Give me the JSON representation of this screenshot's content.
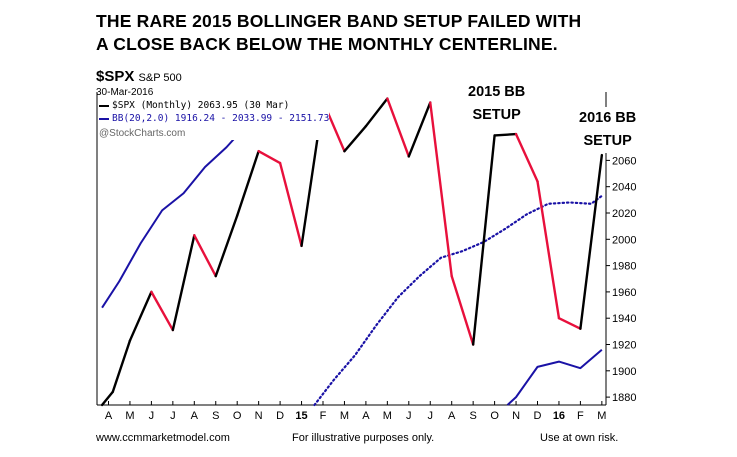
{
  "headline": {
    "line1": "THE RARE 2015 BOLLINGER BAND SETUP FAILED WITH",
    "line2": "A CLOSE BACK BELOW THE MONTHLY CENTERLINE."
  },
  "symbol": {
    "ticker": "$SPX",
    "name": "S&P 500",
    "date": "30-Mar-2016"
  },
  "legend": {
    "price": "$SPX (Monthly) 2063.95 (30 Mar)",
    "bb": "BB(20,2.0) 1916.24 - 2033.99 - 2151.73",
    "copyright": "@StockCharts.com"
  },
  "annotations": {
    "a2015": {
      "line1": "2015 BB",
      "line2": "SETUP"
    },
    "a2016": {
      "line1": "2016 BB",
      "line2": "SETUP"
    }
  },
  "footer": {
    "left": "www.ccmmarketmodel.com",
    "center": "For illustrative purposes only.",
    "right": "Use at own risk."
  },
  "colors": {
    "up": "#000000",
    "down": "#e8103c",
    "band": "#1a12a6"
  },
  "chart_data": {
    "type": "line",
    "categories": [
      "A",
      "M",
      "J",
      "J",
      "A",
      "S",
      "O",
      "N",
      "D",
      "15",
      "F",
      "M",
      "A",
      "M",
      "J",
      "J",
      "A",
      "S",
      "O",
      "N",
      "D",
      "16",
      "F",
      "M"
    ],
    "bold_categories": [
      9,
      21
    ],
    "ylim": [
      1874,
      2112
    ],
    "y_ticks": [
      1880,
      1900,
      1920,
      1940,
      1960,
      1980,
      2000,
      2020,
      2040,
      2060
    ],
    "price_x": [
      -0.3,
      0.2,
      1,
      2,
      3,
      4,
      5,
      6,
      7,
      8,
      9,
      10,
      11,
      12,
      13,
      14,
      15,
      16,
      17,
      18,
      19,
      20,
      21,
      22,
      23
    ],
    "price": [
      1872,
      1884,
      1923,
      1960,
      1931,
      2003,
      1972,
      2018,
      2067,
      2058,
      1995,
      2105,
      2067,
      2086,
      2107,
      2063,
      2104,
      1972,
      1920,
      2079,
      2080,
      2044,
      1940,
      1932,
      2064
    ],
    "band_upper_x": [
      -0.3,
      0.5,
      1.5,
      2.5,
      3.5,
      4.5,
      5.5,
      6.5
    ],
    "band_upper": [
      1948,
      1968,
      1997,
      2022,
      2035,
      2055,
      2070,
      2088
    ],
    "band_middle_x": [
      9.6,
      10.5,
      11.5,
      12.5,
      13.5,
      14.5,
      15.5,
      16.5,
      17.5,
      18.5,
      19.5,
      20.5,
      21.5,
      22.5,
      23
    ],
    "band_middle": [
      1874,
      1893,
      1912,
      1935,
      1956,
      1972,
      1986,
      1991,
      1998,
      2008,
      2019,
      2027,
      2028,
      2027,
      2033
    ],
    "band_lower_x": [
      18.6,
      19,
      20,
      21,
      22,
      23
    ],
    "band_lower": [
      1874,
      1880,
      1903,
      1907,
      1902,
      1916
    ]
  }
}
